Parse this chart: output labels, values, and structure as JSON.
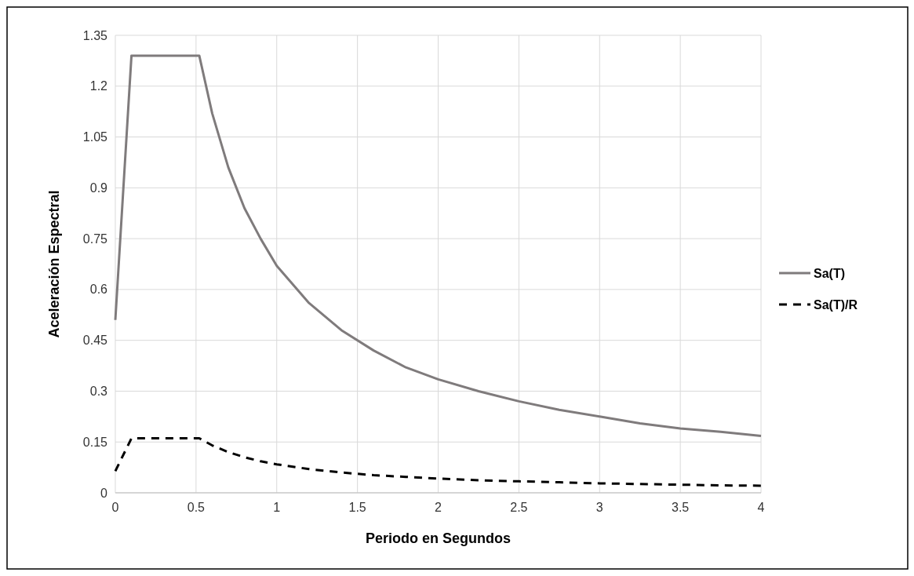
{
  "chart_data": {
    "type": "line",
    "xlabel": "Periodo en Segundos",
    "ylabel": "Aceleración Espectral",
    "x": [
      0,
      0.1,
      0.52,
      0.6,
      0.7,
      0.8,
      0.9,
      1,
      1.2,
      1.4,
      1.6,
      1.8,
      2,
      2.25,
      2.5,
      2.75,
      3,
      3.25,
      3.5,
      3.75,
      4
    ],
    "series": [
      {
        "name": "Sa(T)",
        "color": "#7f7b7c",
        "line_style": "solid",
        "values": [
          0.51,
          1.29,
          1.29,
          1.12,
          0.96,
          0.84,
          0.75,
          0.67,
          0.56,
          0.48,
          0.42,
          0.37,
          0.335,
          0.3,
          0.27,
          0.245,
          0.225,
          0.205,
          0.19,
          0.18,
          0.168
        ]
      },
      {
        "name": "Sa(T)/R",
        "color": "#000000",
        "line_style": "dashed",
        "values": [
          0.064,
          0.161,
          0.161,
          0.14,
          0.12,
          0.105,
          0.093,
          0.084,
          0.07,
          0.06,
          0.052,
          0.047,
          0.042,
          0.037,
          0.034,
          0.031,
          0.028,
          0.026,
          0.024,
          0.022,
          0.021
        ]
      }
    ],
    "xlim": [
      0,
      4
    ],
    "xticks": [
      0,
      0.5,
      1,
      1.5,
      2,
      2.5,
      3,
      3.5,
      4
    ],
    "ylim": [
      0,
      1.35
    ],
    "yticks": [
      0,
      0.15,
      0.3,
      0.45,
      0.6,
      0.75,
      0.9,
      1.05,
      1.2,
      1.35
    ],
    "grid": true,
    "legend": "right",
    "marker": "none"
  }
}
